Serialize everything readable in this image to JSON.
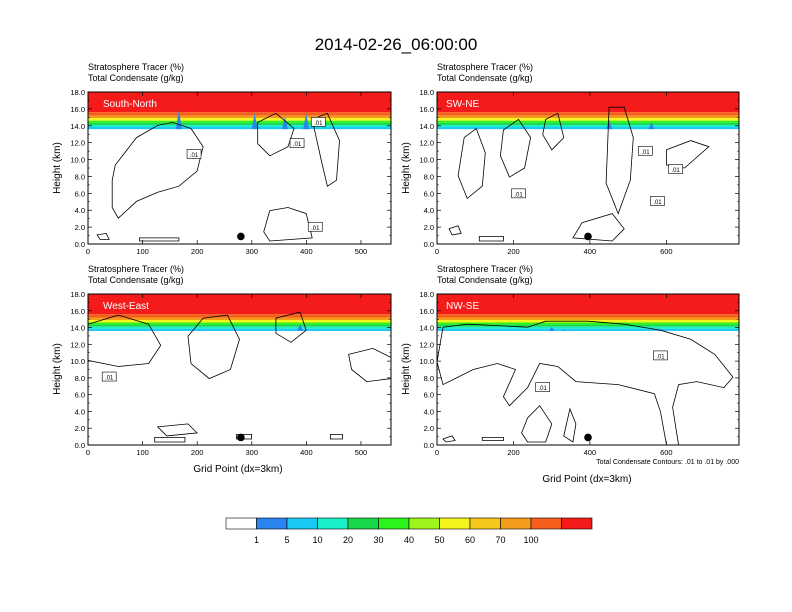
{
  "title": "2014-02-26_06:00:00",
  "colors": {
    "bins": [
      "#ffffff",
      "#2a85f0",
      "#19c8f5",
      "#19f0c8",
      "#19d74b",
      "#2bf41b",
      "#9ef51b",
      "#f5f51b",
      "#f5c81b",
      "#f59b1b",
      "#f55f1b",
      "#f51b1b"
    ],
    "contour": "#000000"
  },
  "colorbar": {
    "labels": [
      "1",
      "5",
      "10",
      "20",
      "30",
      "40",
      "50",
      "60",
      "70",
      "100"
    ]
  },
  "footer_note": "Total Condensate Contours: .01 to .01 by .000",
  "chart_data": [
    {
      "type": "heatmap",
      "name": "South-North",
      "title_lines": [
        "Stratosphere Tracer   (%)",
        "Total Condensate   (g/kg)"
      ],
      "ylabel": "Height (km)",
      "xlabel": "",
      "xlim": [
        0,
        555
      ],
      "ylim": [
        0,
        18
      ],
      "xticks": [
        "0",
        "100",
        "200",
        "300",
        "400",
        "500"
      ],
      "yticks": [
        "0.0",
        "2.0",
        "4.0",
        "6.0",
        "8.0",
        "10.0",
        "12.0",
        "14.0",
        "16.0",
        "18.0"
      ],
      "contour_labels": [
        ".01",
        ".01",
        ".01",
        ".01"
      ],
      "marker_x": 280
    },
    {
      "type": "heatmap",
      "name": "SW-NE",
      "title_lines": [
        "Stratosphere Tracer   (%)",
        "Total Condensate   (g/kg)"
      ],
      "ylabel": "Height (km)",
      "xlabel": "",
      "xlim": [
        0,
        790
      ],
      "ylim": [
        0,
        18
      ],
      "xticks": [
        "0",
        "200",
        "400",
        "600"
      ],
      "yticks": [
        "0.0",
        "2.0",
        "4.0",
        "6.0",
        "8.0",
        "10.0",
        "12.0",
        "14.0",
        "16.0",
        "18.0"
      ],
      "contour_labels": [
        ".01",
        ".01",
        ".01",
        ".01"
      ],
      "marker_x": 395
    },
    {
      "type": "heatmap",
      "name": "West-East",
      "title_lines": [
        "Stratosphere Tracer   (%)",
        "Total Condensate   (g/kg)"
      ],
      "ylabel": "Height (km)",
      "xlabel": "Grid Point (dx=3km)",
      "xlim": [
        0,
        555
      ],
      "ylim": [
        0,
        18
      ],
      "xticks": [
        "0",
        "100",
        "200",
        "300",
        "400",
        "500"
      ],
      "yticks": [
        "0.0",
        "2.0",
        "4.0",
        "6.0",
        "8.0",
        "10.0",
        "12.0",
        "14.0",
        "16.0",
        "18.0"
      ],
      "contour_labels": [
        ".01"
      ],
      "marker_x": 280
    },
    {
      "type": "heatmap",
      "name": "NW-SE",
      "title_lines": [
        "Stratosphere Tracer   (%)",
        "Total Condensate   (g/kg)"
      ],
      "ylabel": "Height (km)",
      "xlabel": "Grid Point (dx=3km)",
      "xlim": [
        0,
        790
      ],
      "ylim": [
        0,
        18
      ],
      "xticks": [
        "0",
        "200",
        "400",
        "600"
      ],
      "yticks": [
        "0.0",
        "2.0",
        "4.0",
        "6.0",
        "8.0",
        "10.0",
        "12.0",
        "14.0",
        "16.0",
        "18.0"
      ],
      "contour_labels": [
        ".01",
        ".01"
      ],
      "marker_x": 395
    }
  ]
}
